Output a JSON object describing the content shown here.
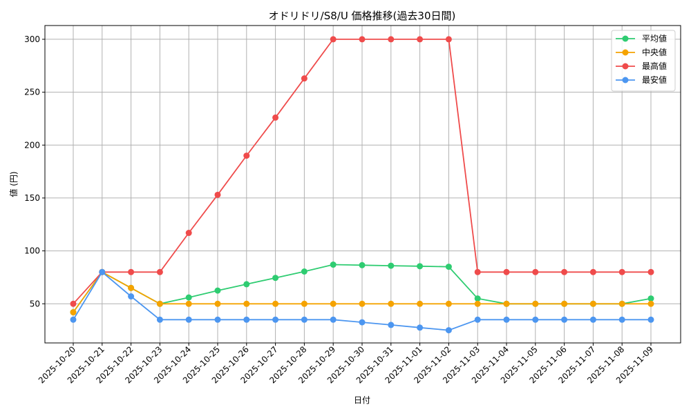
{
  "chart_data": {
    "type": "line",
    "title": "オドリドリ/S8/U 価格推移(過去30日間)",
    "xlabel": "日付",
    "ylabel": "値 (円)",
    "categories": [
      "2025-10-20",
      "2025-10-21",
      "2025-10-22",
      "2025-10-23",
      "2025-10-24",
      "2025-10-25",
      "2025-10-26",
      "2025-10-27",
      "2025-10-28",
      "2025-10-29",
      "2025-10-30",
      "2025-10-31",
      "2025-11-01",
      "2025-11-02",
      "2025-11-03",
      "2025-11-04",
      "2025-11-05",
      "2025-11-06",
      "2025-11-07",
      "2025-11-08",
      "2025-11-09"
    ],
    "yticks": [
      50,
      100,
      150,
      200,
      250,
      300
    ],
    "ylim": [
      13,
      313
    ],
    "grid": true,
    "legend_position": "top-right",
    "series": [
      {
        "name": "平均値",
        "color": "#2ecc71",
        "values": [
          42,
          80,
          65,
          50,
          56,
          62.5,
          68.5,
          74.5,
          80.5,
          87,
          86.5,
          86,
          85.5,
          85,
          55,
          50,
          50,
          50,
          50,
          50,
          55
        ]
      },
      {
        "name": "中央値",
        "color": "#f5a300",
        "values": [
          42,
          80,
          65,
          50,
          50,
          50,
          50,
          50,
          50,
          50,
          50,
          50,
          50,
          50,
          50,
          50,
          50,
          50,
          50,
          50,
          50
        ]
      },
      {
        "name": "最高値",
        "color": "#ef4b4b",
        "values": [
          50,
          80,
          80,
          80,
          117,
          153,
          190,
          226,
          263,
          300,
          300,
          300,
          300,
          300,
          80,
          80,
          80,
          80,
          80,
          80,
          80
        ]
      },
      {
        "name": "最安値",
        "color": "#4c96f0",
        "values": [
          35,
          80,
          57,
          35,
          35,
          35,
          35,
          35,
          35,
          35,
          32.5,
          30,
          27.5,
          25,
          35,
          35,
          35,
          35,
          35,
          35,
          35
        ]
      }
    ]
  }
}
